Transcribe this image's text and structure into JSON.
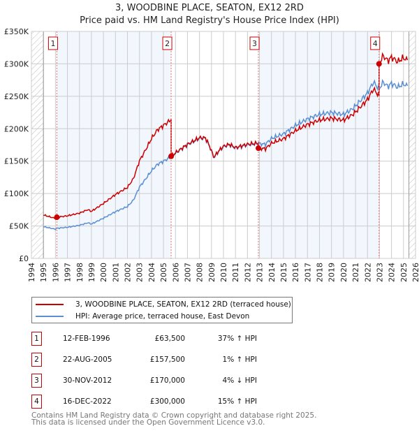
{
  "chart_data": {
    "type": "line",
    "title": "3, WOODBINE PLACE, SEATON, EX12 2RD",
    "subtitle": "Price paid vs. HM Land Registry's House Price Index (HPI)",
    "xlim": [
      1994,
      2026
    ],
    "ylim": [
      0,
      350000
    ],
    "y_ticks": [
      {
        "v": 0,
        "label": "£0"
      },
      {
        "v": 50000,
        "label": "£50K"
      },
      {
        "v": 100000,
        "label": "£100K"
      },
      {
        "v": 150000,
        "label": "£150K"
      },
      {
        "v": 200000,
        "label": "£200K"
      },
      {
        "v": 250000,
        "label": "£250K"
      },
      {
        "v": 300000,
        "label": "£300K"
      },
      {
        "v": 350000,
        "label": "£350K"
      }
    ],
    "x_ticks": [
      "1994",
      "1995",
      "1996",
      "1997",
      "1998",
      "1999",
      "2000",
      "2001",
      "2002",
      "2003",
      "2004",
      "2005",
      "2006",
      "2007",
      "2008",
      "2009",
      "2010",
      "2011",
      "2012",
      "2013",
      "2014",
      "2015",
      "2016",
      "2017",
      "2018",
      "2019",
      "2020",
      "2021",
      "2022",
      "2023",
      "2024",
      "2025",
      "2026"
    ],
    "grid": true,
    "legend_position": "below",
    "hpi_series": {
      "name": "HPI: Average price, terraced house, East Devon",
      "color": "#5b8fd4",
      "points": [
        [
          1995,
          49000
        ],
        [
          1995.5,
          47000
        ],
        [
          1996,
          45000
        ],
        [
          1996.1,
          46400
        ],
        [
          1997,
          48000
        ],
        [
          1998,
          51000
        ],
        [
          1998.7,
          55000
        ],
        [
          1999,
          53000
        ],
        [
          2000,
          62000
        ],
        [
          2001,
          72000
        ],
        [
          2002,
          80000
        ],
        [
          2002.5,
          90000
        ],
        [
          2003,
          110000
        ],
        [
          2003.5,
          122000
        ],
        [
          2004,
          135000
        ],
        [
          2004.5,
          145000
        ],
        [
          2005,
          150000
        ],
        [
          2005.6,
          156000
        ],
        [
          2006,
          162000
        ],
        [
          2007,
          175000
        ],
        [
          2008,
          185000
        ],
        [
          2008.5,
          185000
        ],
        [
          2008.9,
          170000
        ],
        [
          2009.2,
          155000
        ],
        [
          2009.6,
          165000
        ],
        [
          2010,
          172000
        ],
        [
          2010.5,
          175000
        ],
        [
          2011,
          170000
        ],
        [
          2012,
          175000
        ],
        [
          2012.9,
          177000
        ],
        [
          2013.5,
          176000
        ],
        [
          2014,
          185000
        ],
        [
          2015,
          192000
        ],
        [
          2016,
          205000
        ],
        [
          2017,
          215000
        ],
        [
          2018,
          222000
        ],
        [
          2019,
          225000
        ],
        [
          2020,
          222000
        ],
        [
          2020.7,
          230000
        ],
        [
          2021,
          235000
        ],
        [
          2022,
          255000
        ],
        [
          2022.5,
          272000
        ],
        [
          2022.96,
          261000
        ],
        [
          2023.3,
          272000
        ],
        [
          2023.7,
          265000
        ],
        [
          2024,
          270000
        ],
        [
          2024.5,
          264000
        ],
        [
          2025,
          269000
        ],
        [
          2025.4,
          265000
        ]
      ]
    },
    "price_series": {
      "name": "3, WOODBINE PLACE, SEATON, EX12 2RD (terraced house)",
      "color": "#cc0000"
    },
    "sales": [
      {
        "n": "1",
        "t": 1996.12,
        "date": "12-FEB-1996",
        "price_value": 63500,
        "price": "£63,500",
        "hpi": "37% ↑ HPI"
      },
      {
        "n": "2",
        "t": 2005.64,
        "date": "22-AUG-2005",
        "price_value": 157500,
        "price": "£157,500",
        "hpi": "1% ↑ HPI"
      },
      {
        "n": "3",
        "t": 2012.91,
        "date": "30-NOV-2012",
        "price_value": 170000,
        "price": "£170,000",
        "hpi": "4% ↓ HPI"
      },
      {
        "n": "4",
        "t": 2022.96,
        "date": "16-DEC-2022",
        "price_value": 300000,
        "price": "£300,000",
        "hpi": "15% ↑ HPI"
      }
    ]
  },
  "footer": {
    "line1": "Contains HM Land Registry data © Crown copyright and database right 2025.",
    "line2": "This data is licensed under the Open Government Licence v3.0."
  }
}
